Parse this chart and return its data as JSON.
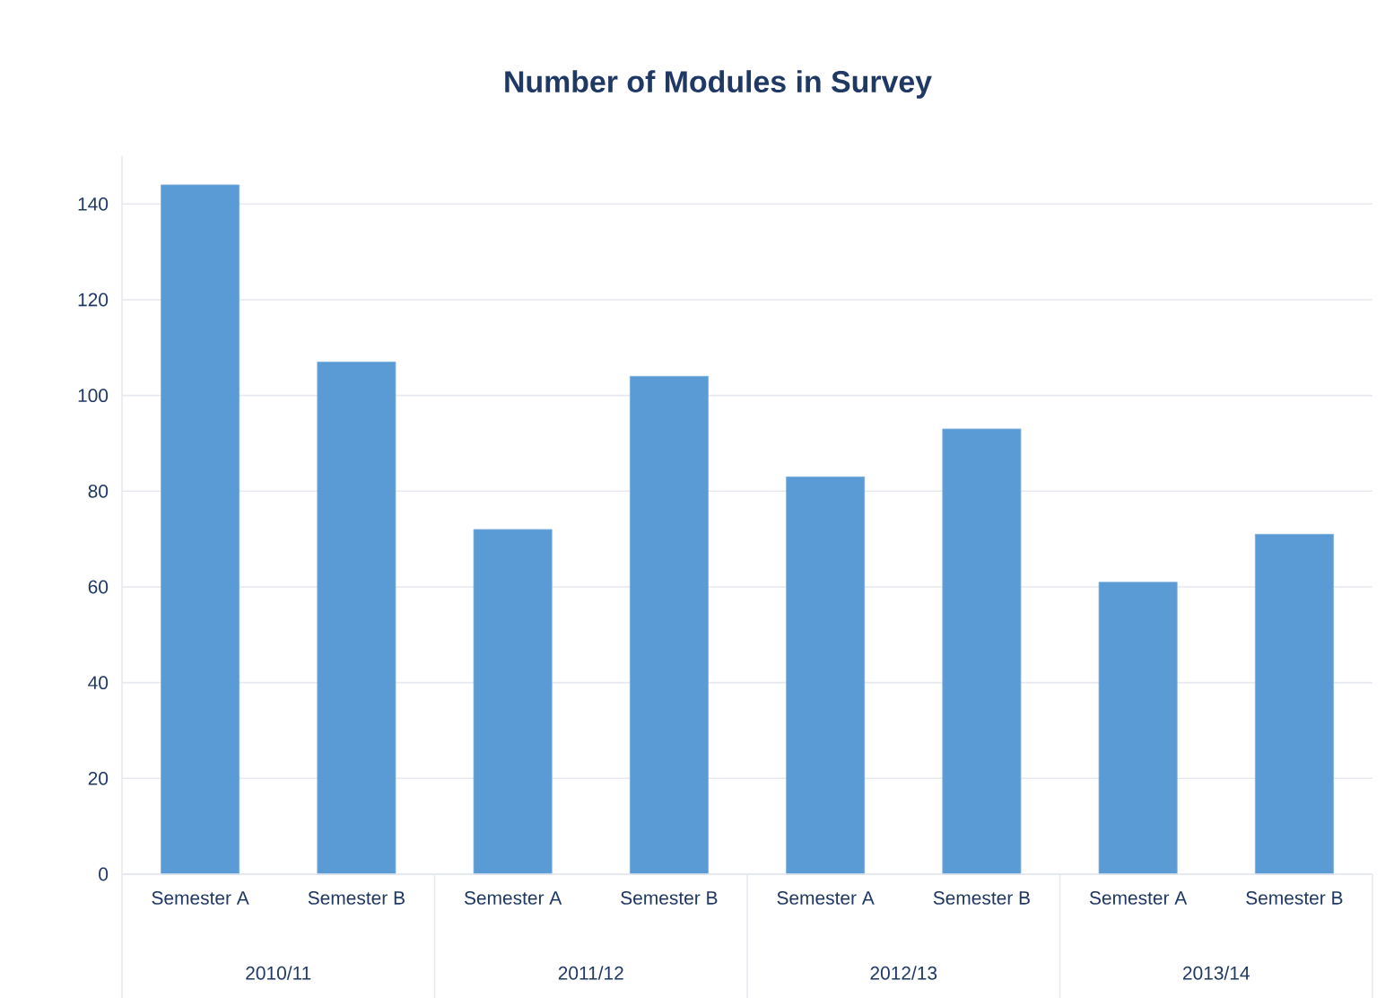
{
  "chart_data": {
    "type": "bar",
    "title": "Number of Modules in Survey",
    "categories": [
      "Semester A",
      "Semester B",
      "Semester A",
      "Semester B",
      "Semester A",
      "Semester B",
      "Semester A",
      "Semester B"
    ],
    "values": [
      144,
      107,
      72,
      104,
      83,
      93,
      61,
      71
    ],
    "color": "#5b9bd5",
    "ylim": [
      0,
      150
    ],
    "yticks": [
      0,
      20,
      40,
      60,
      80,
      100,
      120,
      140
    ],
    "grid": "y",
    "annotations": [
      "2010/11",
      "2011/12",
      "2012/13",
      "2013/14"
    ]
  }
}
